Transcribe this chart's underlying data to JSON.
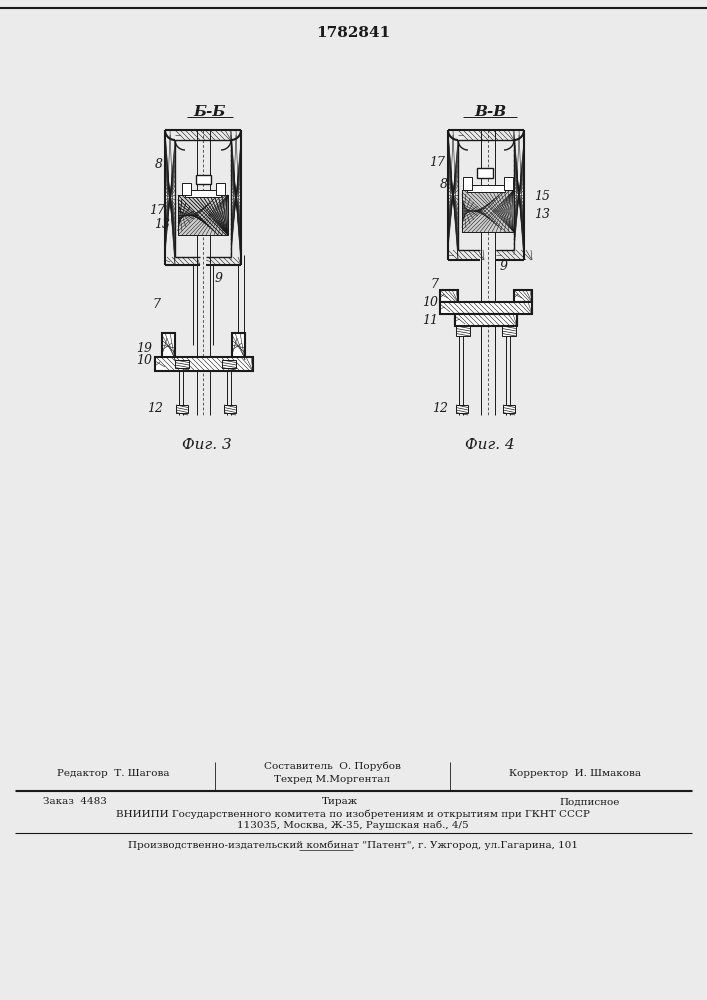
{
  "patent_number": "1782841",
  "bg_color": "#ebebeb",
  "line_color": "#1a1a1a",
  "fig3_label": "Б-Б",
  "fig4_label": "В-В",
  "fig3_caption": "Фиг. 3",
  "fig4_caption": "Фиг. 4",
  "footer_line1_left": "Редактор  Т. Шагова",
  "footer_line1_mid_top": "Составитель  О. Порубов",
  "footer_line1_mid_bot": "Техред М.Моргентал",
  "footer_line1_right": "Корректор  И. Шмакова",
  "footer_line2_left": "Заказ  4483",
  "footer_line2_mid": "Тираж",
  "footer_line2_right": "Подписное",
  "footer_line3": "ВНИИПИ Государственного комитета по изобретениям и открытиям при ГКНТ СССР",
  "footer_line4": "113035, Москва, Ж-35, Раушская наб., 4/5",
  "footer_line5": "Производственно-издательский комбинат \"Патент\", г. Ужгород, ул.Гагарина, 101"
}
